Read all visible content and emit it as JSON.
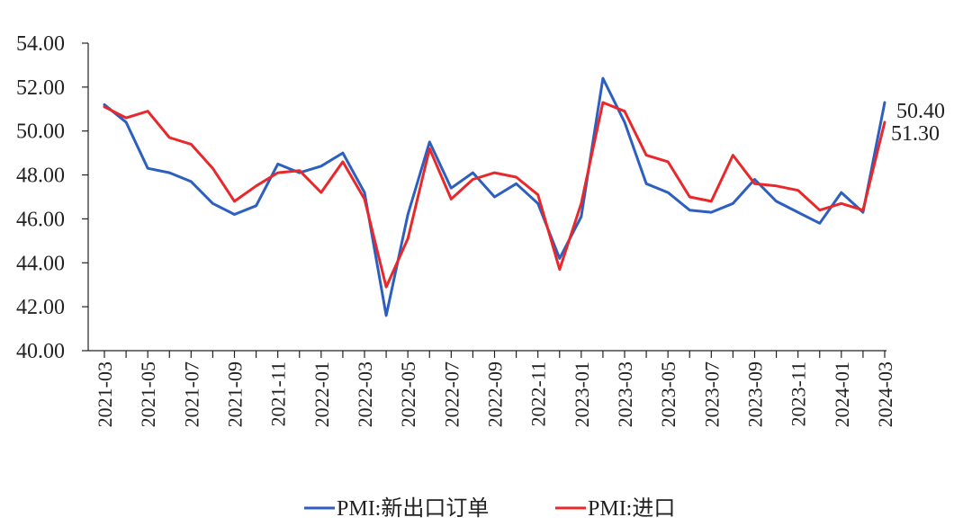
{
  "chart_data": {
    "type": "line",
    "title": "",
    "xlabel": "",
    "ylabel": "",
    "ylim": [
      40,
      54
    ],
    "y_ticks": [
      "40.00",
      "42.00",
      "44.00",
      "46.00",
      "48.00",
      "50.00",
      "52.00",
      "54.00"
    ],
    "x": [
      "2021-03",
      "2021-04",
      "2021-05",
      "2021-06",
      "2021-07",
      "2021-08",
      "2021-09",
      "2021-10",
      "2021-11",
      "2021-12",
      "2022-01",
      "2022-02",
      "2022-03",
      "2022-04",
      "2022-05",
      "2022-06",
      "2022-07",
      "2022-08",
      "2022-09",
      "2022-10",
      "2022-11",
      "2022-12",
      "2023-01",
      "2023-02",
      "2023-03",
      "2023-04",
      "2023-05",
      "2023-06",
      "2023-07",
      "2023-08",
      "2023-09",
      "2023-10",
      "2023-11",
      "2023-12",
      "2024-01",
      "2024-02",
      "2024-03"
    ],
    "x_tick_labels": [
      "2021-03",
      "2021-05",
      "2021-07",
      "2021-09",
      "2021-11",
      "2022-01",
      "2022-03",
      "2022-05",
      "2022-07",
      "2022-09",
      "2022-11",
      "2023-01",
      "2023-03",
      "2023-05",
      "2023-07",
      "2023-09",
      "2023-11",
      "2024-01",
      "2024-03"
    ],
    "grid": false,
    "legend_position": "bottom",
    "series": [
      {
        "name": "PMI:新出口订单",
        "color": "#2c5fc0",
        "values": [
          51.2,
          50.4,
          48.3,
          48.1,
          47.7,
          46.7,
          46.2,
          46.6,
          48.5,
          48.1,
          48.4,
          49.0,
          47.2,
          41.6,
          46.2,
          49.5,
          47.4,
          48.1,
          47.0,
          47.6,
          46.7,
          44.2,
          46.1,
          52.4,
          50.4,
          47.6,
          47.2,
          46.4,
          46.3,
          46.7,
          47.8,
          46.8,
          46.3,
          45.8,
          47.2,
          46.3,
          51.3
        ]
      },
      {
        "name": "PMI:进口",
        "color": "#e8282b",
        "values": [
          51.1,
          50.6,
          50.9,
          49.7,
          49.4,
          48.3,
          46.8,
          47.5,
          48.1,
          48.2,
          47.2,
          48.6,
          46.9,
          42.9,
          45.1,
          49.2,
          46.9,
          47.8,
          48.1,
          47.9,
          47.1,
          43.7,
          46.7,
          51.3,
          50.9,
          48.9,
          48.6,
          47.0,
          46.8,
          48.9,
          47.6,
          47.5,
          47.3,
          46.4,
          46.7,
          46.4,
          50.4
        ]
      }
    ],
    "end_labels": [
      "50.40",
      "51.30"
    ]
  }
}
